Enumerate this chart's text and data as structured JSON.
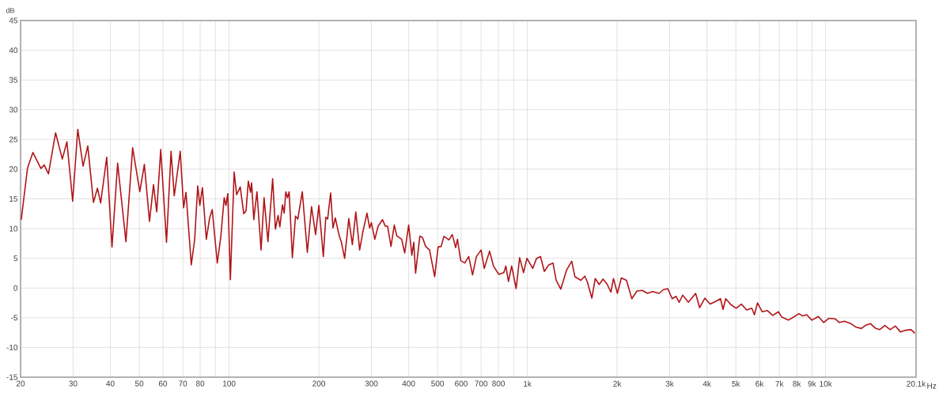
{
  "chart_data": {
    "type": "line",
    "xlabel": "Hz",
    "ylabel": "dB",
    "log": "x",
    "grid": true,
    "color": "#b01418",
    "xlim": [
      20,
      20100
    ],
    "ylim": [
      -15,
      45
    ],
    "xticks": [
      20,
      30,
      40,
      50,
      60,
      70,
      80,
      {
        "value": 90,
        "label": null
      },
      100,
      200,
      300,
      400,
      500,
      600,
      700,
      800,
      {
        "value": 900,
        "label": null
      },
      {
        "value": 1000,
        "label": "1k"
      },
      {
        "value": 2000,
        "label": "2k"
      },
      {
        "value": 3000,
        "label": "3k"
      },
      {
        "value": 4000,
        "label": "4k"
      },
      {
        "value": 5000,
        "label": "5k"
      },
      {
        "value": 6000,
        "label": "6k"
      },
      {
        "value": 7000,
        "label": "7k"
      },
      {
        "value": 8000,
        "label": "8k"
      },
      {
        "value": 9000,
        "label": "9k"
      },
      {
        "value": 10000,
        "label": "10k"
      },
      {
        "value": 20100,
        "label": "20.1k"
      }
    ],
    "yticks": [
      -15,
      -10,
      -5,
      0,
      5,
      10,
      15,
      20,
      25,
      30,
      35,
      40,
      45
    ],
    "x": [
      20.1,
      21.1,
      22.0,
      23.4,
      24.0,
      24.8,
      26.2,
      27.6,
      28.6,
      29.9,
      31.1,
      32.4,
      33.6,
      35.1,
      36.2,
      37.1,
      38.9,
      40.5,
      42.3,
      45.1,
      47.5,
      50.2,
      52.0,
      54.1,
      55.8,
      57.2,
      59.0,
      61.7,
      63.9,
      65.5,
      68.6,
      70.4,
      71.7,
      74.7,
      76.7,
      78.5,
      79.8,
      81.4,
      83.9,
      86.0,
      87.8,
      91.3,
      93.8,
      96.3,
      97.6,
      99.0,
      101,
      104,
      106,
      109,
      112,
      114,
      116,
      118,
      119,
      121,
      124,
      128,
      131,
      135,
      140,
      143,
      146,
      148,
      151,
      153,
      155,
      157,
      159,
      163,
      167,
      170,
      176,
      183,
      189,
      195,
      200,
      207,
      211,
      214,
      219,
      223,
      227,
      234,
      238,
      244,
      252,
      259,
      266,
      274,
      281,
      290,
      296,
      300,
      308,
      316,
      327,
      334,
      340,
      349,
      358,
      365,
      379,
      388,
      400,
      410,
      416,
      422,
      436,
      445,
      456,
      470,
      489,
      502,
      514,
      525,
      546,
      560,
      575,
      583,
      598,
      617,
      636,
      655,
      675,
      700,
      717,
      747,
      770,
      802,
      834,
      847,
      864,
      886,
      917,
      942,
      971,
      997,
      1042,
      1074,
      1107,
      1140,
      1180,
      1219,
      1249,
      1294,
      1353,
      1409,
      1443,
      1512,
      1558,
      1590,
      1645,
      1689,
      1741,
      1794,
      1849,
      1906,
      1944,
      2004,
      2066,
      2150,
      2240,
      2330,
      2427,
      2528,
      2630,
      2766,
      2852,
      2956,
      3058,
      3152,
      3230,
      3316,
      3466,
      3666,
      3780,
      3936,
      4098,
      4264,
      4442,
      4530,
      4624,
      4814,
      5012,
      5218,
      5432,
      5656,
      5770,
      5912,
      6130,
      6382,
      6646,
      6946,
      7130,
      7500,
      7806,
      8128,
      8376,
      8634,
      8992,
      9454,
      9846,
      10246,
      10778,
      11108,
      11560,
      12162,
      12658,
      13180,
      13584,
      14146,
      14720,
      15172,
      15800,
      16454,
      17124,
      17832,
      18570,
      19322,
      19918
    ],
    "values": [
      11.5,
      20.2,
      22.8,
      20.1,
      20.7,
      19.2,
      26.1,
      21.7,
      24.6,
      14.6,
      26.7,
      20.5,
      23.9,
      14.4,
      16.8,
      14.3,
      22.0,
      6.9,
      21.0,
      7.8,
      23.6,
      16.2,
      20.8,
      11.2,
      17.4,
      12.8,
      23.3,
      7.7,
      23.0,
      15.5,
      23.0,
      13.5,
      16.1,
      3.9,
      8.2,
      17.2,
      13.9,
      16.9,
      8.2,
      11.7,
      13.2,
      4.2,
      8.6,
      15.2,
      13.9,
      15.9,
      1.4,
      19.5,
      15.7,
      17.0,
      12.5,
      13.0,
      18.0,
      16.1,
      17.7,
      11.5,
      16.2,
      6.4,
      15.2,
      7.8,
      18.4,
      9.9,
      12.2,
      10.3,
      14.0,
      12.6,
      16.2,
      15.2,
      16.2,
      5.1,
      12.1,
      11.6,
      16.2,
      6.0,
      13.7,
      9.0,
      13.9,
      5.3,
      11.9,
      11.6,
      16.0,
      10.1,
      11.8,
      8.8,
      7.7,
      5.0,
      11.7,
      7.3,
      12.8,
      6.4,
      9.5,
      12.6,
      10.1,
      11.0,
      8.2,
      10.4,
      11.5,
      10.4,
      10.4,
      7.0,
      10.6,
      8.8,
      8.2,
      5.9,
      10.6,
      5.5,
      7.7,
      2.5,
      8.7,
      8.5,
      7.0,
      6.4,
      1.9,
      6.9,
      7.0,
      8.7,
      8.1,
      9.0,
      6.8,
      8.2,
      4.6,
      4.2,
      5.3,
      2.2,
      5.3,
      6.4,
      3.3,
      6.2,
      3.7,
      2.3,
      2.6,
      3.7,
      1.1,
      3.7,
      -0.1,
      5.1,
      2.6,
      5.0,
      3.3,
      5.0,
      5.3,
      2.8,
      3.9,
      4.2,
      1.3,
      -0.2,
      3.0,
      4.5,
      1.9,
      1.3,
      2.0,
      1.0,
      -1.7,
      1.6,
      0.6,
      1.5,
      0.7,
      -0.7,
      1.6,
      -0.9,
      1.7,
      1.3,
      -1.8,
      -0.5,
      -0.4,
      -0.9,
      -0.6,
      -0.9,
      -0.3,
      -0.1,
      -1.8,
      -1.4,
      -2.4,
      -1.2,
      -2.4,
      -0.9,
      -3.3,
      -1.7,
      -2.7,
      -2.3,
      -1.8,
      -3.6,
      -1.8,
      -2.8,
      -3.4,
      -2.7,
      -3.7,
      -3.4,
      -4.5,
      -2.5,
      -4.0,
      -3.8,
      -4.6,
      -4.0,
      -4.9,
      -5.4,
      -4.9,
      -4.3,
      -4.7,
      -4.5,
      -5.4,
      -4.8,
      -5.8,
      -5.1,
      -5.2,
      -5.8,
      -5.6,
      -6.0,
      -6.6,
      -6.8,
      -6.3,
      -6.0,
      -6.8,
      -7.0,
      -6.3,
      -7.0,
      -6.4,
      -7.4,
      -7.1,
      -7.0,
      -7.6
    ]
  }
}
